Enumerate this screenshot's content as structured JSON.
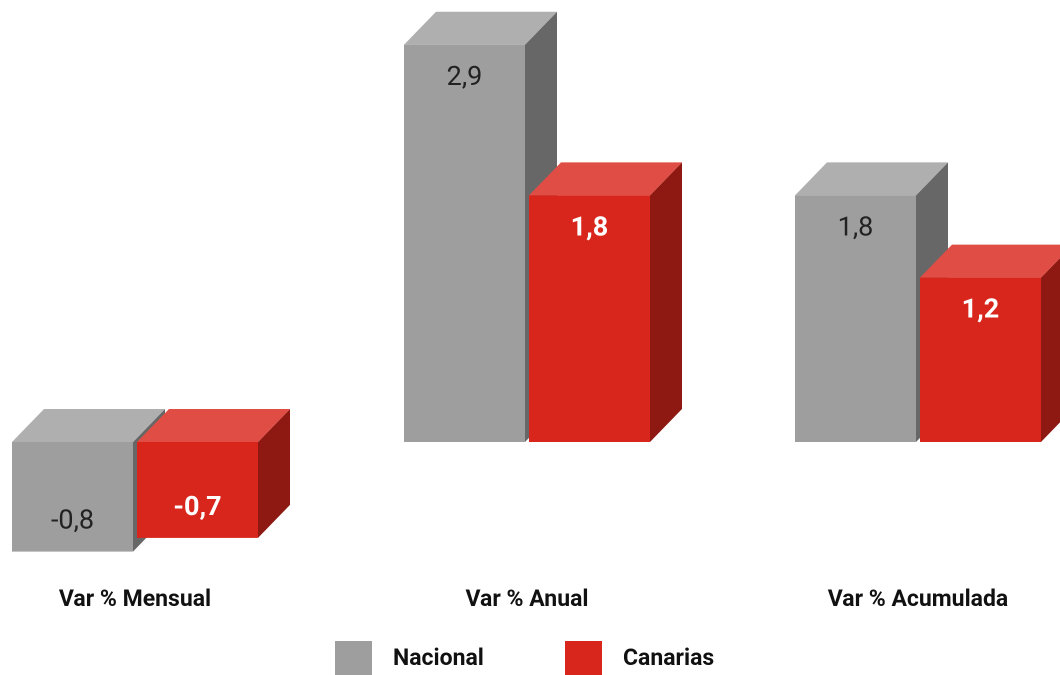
{
  "chart_data": {
    "type": "bar3d",
    "categories": [
      "Var % Mensual",
      "Var % Anual",
      "Var % Acumulada"
    ],
    "series": [
      {
        "name": "Nacional",
        "color": "#9e9e9e",
        "values": [
          -0.8,
          2.9,
          1.8
        ],
        "value_labels": [
          "-0,8",
          "2,9",
          "1,8"
        ]
      },
      {
        "name": "Canarias",
        "color": "#d9261c",
        "values": [
          -0.7,
          1.8,
          1.2
        ],
        "value_labels": [
          "-0,7",
          "1,8",
          "1,2"
        ]
      }
    ]
  }
}
